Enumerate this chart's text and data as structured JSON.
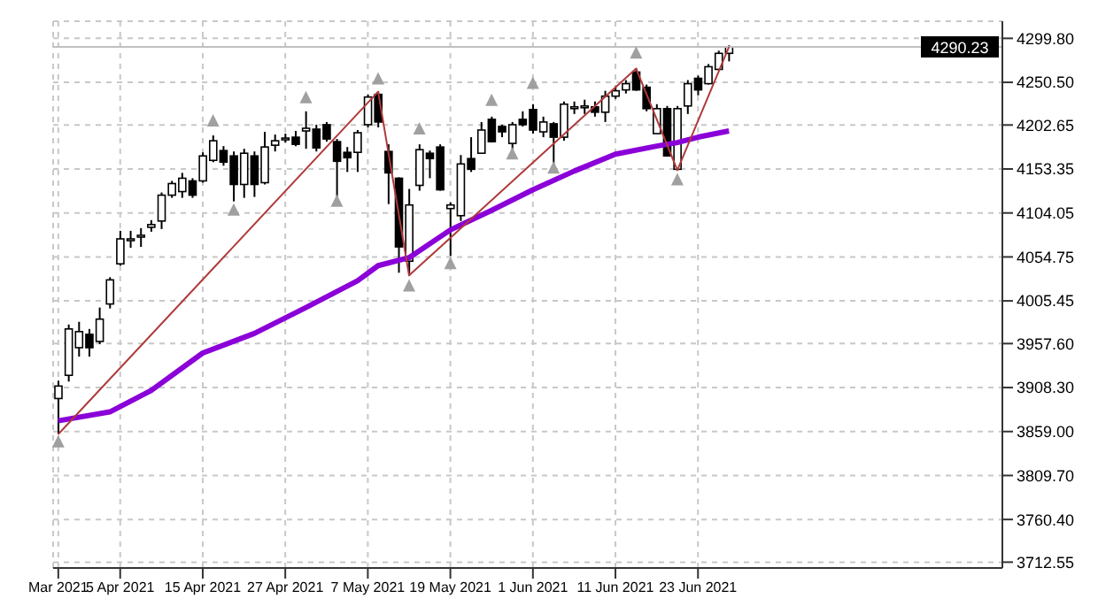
{
  "chart_data": {
    "type": "candlestick",
    "color": "#000000",
    "categories": [
      "Mar 2021",
      null,
      null,
      null,
      null,
      null,
      "5 Apr 2021",
      null,
      null,
      null,
      null,
      null,
      null,
      null,
      "15 Apr 2021",
      null,
      null,
      null,
      null,
      null,
      null,
      null,
      "27 Apr 2021",
      null,
      null,
      null,
      null,
      null,
      null,
      null,
      "7 May 2021",
      null,
      null,
      null,
      null,
      null,
      null,
      null,
      "19 May 2021",
      null,
      null,
      null,
      null,
      null,
      null,
      null,
      "1 Jun 2021",
      null,
      null,
      null,
      null,
      null,
      null,
      null,
      "11 Jun 2021",
      null,
      null,
      null,
      null,
      null,
      null,
      null,
      "23 Jun 2021",
      null,
      null,
      null,
      null,
      null,
      null,
      null,
      null,
      null,
      null,
      null,
      null,
      null,
      null,
      null,
      null,
      null,
      null,
      null,
      null,
      null,
      null,
      null,
      null,
      null,
      null,
      null,
      null,
      null
    ],
    "ohlc": [
      [
        3896,
        3916,
        3856,
        3910
      ],
      [
        3922,
        3979,
        3915,
        3974
      ],
      [
        3953,
        3982,
        3943,
        3971
      ],
      [
        3968,
        3974,
        3943,
        3953
      ],
      [
        3960,
        3998,
        3957,
        3985
      ],
      [
        4002,
        4032,
        3997,
        4029
      ],
      [
        4047,
        4084,
        4045,
        4075
      ],
      [
        4073,
        4084,
        4065,
        4075
      ],
      [
        4077,
        4087,
        4066,
        4079
      ],
      [
        4088,
        4096,
        4083,
        4091
      ],
      [
        4095,
        4127,
        4086,
        4124
      ],
      [
        4124,
        4140,
        4121,
        4137
      ],
      [
        4128,
        4149,
        4121,
        4143
      ],
      [
        4140,
        4143,
        4121,
        4124
      ],
      [
        4140,
        4172,
        4138,
        4168
      ],
      [
        4163,
        4191,
        4161,
        4185
      ],
      [
        4174,
        4179,
        4157,
        4161
      ],
      [
        4168,
        4173,
        4117,
        4136
      ],
      [
        4136,
        4176,
        4121,
        4171
      ],
      [
        4168,
        4173,
        4122,
        4136
      ],
      [
        4138,
        4195,
        4136,
        4178
      ],
      [
        4180,
        4192,
        4173,
        4185
      ],
      [
        4187,
        4193,
        4183,
        4188
      ],
      [
        4189,
        4196,
        4179,
        4181
      ],
      [
        4196,
        4218,
        4176,
        4199
      ],
      [
        4198,
        4203,
        4173,
        4177
      ],
      [
        4203,
        4206,
        4184,
        4187
      ],
      [
        4184,
        4187,
        4117,
        4162
      ],
      [
        4172,
        4178,
        4150,
        4166
      ],
      [
        4172,
        4197,
        4150,
        4194
      ],
      [
        4203,
        4237,
        4200,
        4234
      ],
      [
        4237,
        4240,
        4200,
        4206
      ],
      [
        4173,
        4181,
        4114,
        4149
      ],
      [
        4143,
        4144,
        4037,
        4066
      ],
      [
        4050,
        4131,
        4034,
        4113
      ],
      [
        4135,
        4181,
        4129,
        4175
      ],
      [
        4171,
        4174,
        4143,
        4165
      ],
      [
        4178,
        4181,
        4129,
        4130
      ],
      [
        4109,
        4116,
        4056,
        4113
      ],
      [
        4101,
        4169,
        4095,
        4159
      ],
      [
        4165,
        4189,
        4150,
        4153
      ],
      [
        4171,
        4206,
        4171,
        4197
      ],
      [
        4209,
        4212,
        4183,
        4184
      ],
      [
        4201,
        4203,
        4189,
        4195
      ],
      [
        4182,
        4206,
        4173,
        4203
      ],
      [
        4209,
        4218,
        4201,
        4203
      ],
      [
        4220,
        4226,
        4193,
        4197
      ],
      [
        4195,
        4212,
        4189,
        4206
      ],
      [
        4204,
        4206,
        4157,
        4189
      ],
      [
        4189,
        4229,
        4185,
        4226
      ],
      [
        4222,
        4229,
        4215,
        4223
      ],
      [
        4223,
        4231,
        4215,
        4224
      ],
      [
        4223,
        4229,
        4212,
        4217
      ],
      [
        4217,
        4241,
        4206,
        4235
      ],
      [
        4235,
        4246,
        4232,
        4241
      ],
      [
        4242,
        4253,
        4238,
        4249
      ],
      [
        4262,
        4266,
        4241,
        4242
      ],
      [
        4245,
        4248,
        4218,
        4221
      ],
      [
        4193,
        4226,
        4193,
        4221
      ],
      [
        4221,
        4224,
        4168,
        4168
      ],
      [
        4153,
        4224,
        4152,
        4221
      ],
      [
        4224,
        4253,
        4215,
        4249
      ],
      [
        4255,
        4258,
        4236,
        4242
      ],
      [
        4249,
        4271,
        4248,
        4268
      ],
      [
        4265,
        4286,
        4264,
        4283
      ],
      [
        4283,
        4292,
        4274,
        4290.23
      ],
      null,
      null,
      null,
      null,
      null,
      null,
      null,
      null,
      null,
      null,
      null,
      null,
      null,
      null,
      null,
      null,
      null,
      null,
      null,
      null,
      null,
      null,
      null,
      null,
      null,
      null
    ],
    "series": [
      {
        "type": "line",
        "color": "#8b00d8",
        "values": [
          3871,
          null,
          null,
          null,
          null,
          3881,
          null,
          null,
          null,
          3905,
          null,
          null,
          null,
          null,
          3947,
          null,
          null,
          null,
          null,
          3969,
          null,
          null,
          null,
          null,
          3998,
          null,
          null,
          null,
          null,
          4028,
          null,
          4045,
          null,
          null,
          4054,
          null,
          null,
          null,
          4085,
          null,
          null,
          null,
          4107,
          null,
          null,
          null,
          4130,
          null,
          null,
          null,
          4151,
          null,
          null,
          null,
          4170,
          null,
          null,
          null,
          4179,
          null,
          4183,
          null,
          4189,
          null,
          null,
          4196,
          null,
          null,
          null,
          null,
          null,
          null,
          null,
          null,
          null,
          null,
          null,
          null,
          null,
          null,
          null,
          null,
          null,
          null,
          null,
          null,
          null,
          null,
          null,
          null,
          null,
          null
        ]
      },
      {
        "type": "line",
        "color": "#b03a3a",
        "values": [
          3856,
          null,
          null,
          null,
          null,
          null,
          null,
          null,
          null,
          null,
          null,
          null,
          null,
          null,
          null,
          null,
          null,
          null,
          null,
          null,
          null,
          null,
          null,
          null,
          null,
          null,
          null,
          null,
          null,
          null,
          null,
          4240,
          null,
          null,
          4034,
          null,
          null,
          null,
          null,
          null,
          null,
          null,
          null,
          null,
          null,
          null,
          null,
          null,
          null,
          null,
          null,
          null,
          null,
          null,
          null,
          null,
          4266,
          null,
          null,
          null,
          4152,
          null,
          null,
          null,
          null,
          4290,
          null,
          null,
          null,
          null,
          null,
          null,
          null,
          null,
          null,
          null,
          null,
          null,
          null,
          null,
          null,
          null,
          null,
          null,
          null,
          null,
          null,
          null,
          null,
          null,
          null,
          null
        ]
      },
      {
        "type": "scatter",
        "color": "#a0a0a0",
        "marker": "triangle",
        "values": [
          null,
          null,
          null,
          null,
          null,
          null,
          null,
          null,
          null,
          null,
          null,
          null,
          null,
          null,
          null,
          4207,
          null,
          null,
          null,
          null,
          null,
          null,
          null,
          null,
          4233,
          null,
          null,
          null,
          null,
          null,
          null,
          4254,
          null,
          null,
          null,
          4198,
          null,
          null,
          null,
          null,
          null,
          null,
          4230,
          null,
          null,
          null,
          4249,
          null,
          null,
          null,
          null,
          null,
          null,
          null,
          null,
          null,
          4283,
          null,
          null,
          null,
          null,
          null,
          null,
          null,
          null,
          null,
          null,
          null,
          null,
          null,
          null,
          null,
          null,
          null,
          null,
          null,
          null,
          null,
          null,
          null,
          null,
          null,
          null,
          null,
          null,
          null,
          null,
          null,
          null,
          null,
          null,
          null
        ]
      },
      {
        "type": "scatter",
        "color": "#a0a0a0",
        "marker": "triangle",
        "values": [
          3847,
          null,
          null,
          null,
          null,
          null,
          null,
          null,
          null,
          null,
          null,
          null,
          null,
          null,
          null,
          null,
          null,
          4107,
          null,
          null,
          null,
          null,
          null,
          null,
          null,
          null,
          null,
          4117,
          null,
          null,
          null,
          null,
          null,
          null,
          4022,
          null,
          null,
          null,
          4047,
          null,
          null,
          null,
          null,
          null,
          4170,
          null,
          null,
          null,
          4154,
          null,
          null,
          null,
          null,
          null,
          null,
          null,
          null,
          null,
          null,
          null,
          4141,
          null,
          null,
          null,
          null,
          null,
          null,
          null,
          null,
          null,
          null,
          null,
          null,
          null,
          null,
          null,
          null,
          null,
          null,
          null,
          null,
          null,
          null,
          null,
          null,
          null,
          null,
          null,
          null,
          null,
          null,
          null
        ]
      }
    ],
    "ylim": [
      3706,
      4319
    ],
    "yticks": [
      {
        "value": 3712.55,
        "label": "3712.55"
      },
      {
        "value": 3760.4,
        "label": "3760.40"
      },
      {
        "value": 3809.7,
        "label": "3809.70"
      },
      {
        "value": 3859,
        "label": "3859.00"
      },
      {
        "value": 3908.3,
        "label": "3908.30"
      },
      {
        "value": 3957.6,
        "label": "3957.60"
      },
      {
        "value": 4005.45,
        "label": "4005.45"
      },
      {
        "value": 4054.75,
        "label": "4054.75"
      },
      {
        "value": 4104.05,
        "label": "4104.05"
      },
      {
        "value": 4153.35,
        "label": "4153.35"
      },
      {
        "value": 4202.65,
        "label": "4202.65"
      },
      {
        "value": 4250.5,
        "label": "4250.50"
      },
      {
        "value": 4299.8,
        "label": "4299.80"
      }
    ],
    "grid": true,
    "ref_lines": [
      {
        "axis": "y",
        "value": 4290.23,
        "label": "4290.23",
        "color": "#c0c0c0"
      }
    ]
  }
}
